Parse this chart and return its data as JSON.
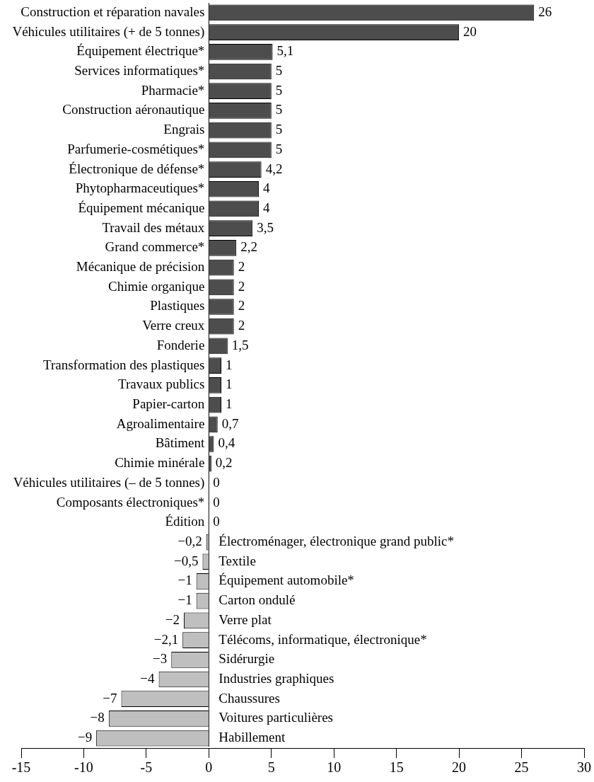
{
  "chart_data": {
    "type": "bar",
    "orientation": "horizontal",
    "categories": [
      "Construction et réparation navales",
      "Véhicules utilitaires (+ de 5 tonnes)",
      "Équipement électrique*",
      "Services informatiques*",
      "Pharmacie*",
      "Construction aéronautique",
      "Engrais",
      "Parfumerie-cosmétiques*",
      "Électronique de défense*",
      "Phytopharmaceutiques*",
      "Équipement mécanique",
      "Travail des métaux",
      "Grand commerce*",
      "Mécanique de précision",
      "Chimie organique",
      "Plastiques",
      "Verre creux",
      "Fonderie",
      "Transformation des plastiques",
      "Travaux publics",
      "Papier-carton",
      "Agroalimentaire",
      "Bâtiment",
      "Chimie minérale",
      "Véhicules utilitaires (– de 5 tonnes)",
      "Composants électroniques*",
      "Édition",
      "Électroménager, électronique grand public*",
      "Textile",
      "Équipement automobile*",
      "Carton ondulé",
      "Verre plat",
      "Télécoms, informatique, électronique*",
      "Sidérurgie",
      "Industries graphiques",
      "Chaussures",
      "Voitures particulières",
      "Habillement"
    ],
    "values": [
      26,
      20,
      5.1,
      5,
      5,
      5,
      5,
      5,
      4.2,
      4,
      4,
      3.5,
      2.2,
      2,
      2,
      2,
      2,
      1.5,
      1,
      1,
      1,
      0.7,
      0.4,
      0.2,
      0,
      0,
      0,
      -0.2,
      -0.5,
      -1,
      -1,
      -2,
      -2.1,
      -3,
      -4,
      -7,
      -8,
      -9
    ],
    "value_labels": [
      "26",
      "20",
      "5,1",
      "5",
      "5",
      "5",
      "5",
      "5",
      "4,2",
      "4",
      "4",
      "3,5",
      "2,2",
      "2",
      "2",
      "2",
      "2",
      "1,5",
      "1",
      "1",
      "1",
      "0,7",
      "0,4",
      "0,2",
      "0",
      "0",
      "0",
      "−0,2",
      "−0,5",
      "−1",
      "−1",
      "−2",
      "−2,1",
      "−3",
      "−4",
      "−7",
      "−8",
      "−9"
    ],
    "colors": [
      "#4d4d4d",
      "#4d4d4d",
      "#4d4d4d",
      "#4d4d4d",
      "#4d4d4d",
      "#4d4d4d",
      "#4d4d4d",
      "#4d4d4d",
      "#4d4d4d",
      "#4d4d4d",
      "#4d4d4d",
      "#4d4d4d",
      "#4d4d4d",
      "#4d4d4d",
      "#4d4d4d",
      "#4d4d4d",
      "#4d4d4d",
      "#4d4d4d",
      "#4d4d4d",
      "#4d4d4d",
      "#4d4d4d",
      "#4d4d4d",
      "#4d4d4d",
      "#4d4d4d",
      "#4d4d4d",
      "#4d4d4d",
      "#4d4d4d",
      "#bfbfbf",
      "#bfbfbf",
      "#bfbfbf",
      "#bfbfbf",
      "#bfbfbf",
      "#bfbfbf",
      "#bfbfbf",
      "#bfbfbf",
      "#bfbfbf",
      "#bfbfbf",
      "#bfbfbf"
    ],
    "xlim": [
      -15,
      30
    ],
    "xticks": [
      -15,
      -10,
      -5,
      0,
      5,
      10,
      15,
      20,
      25,
      30
    ]
  }
}
